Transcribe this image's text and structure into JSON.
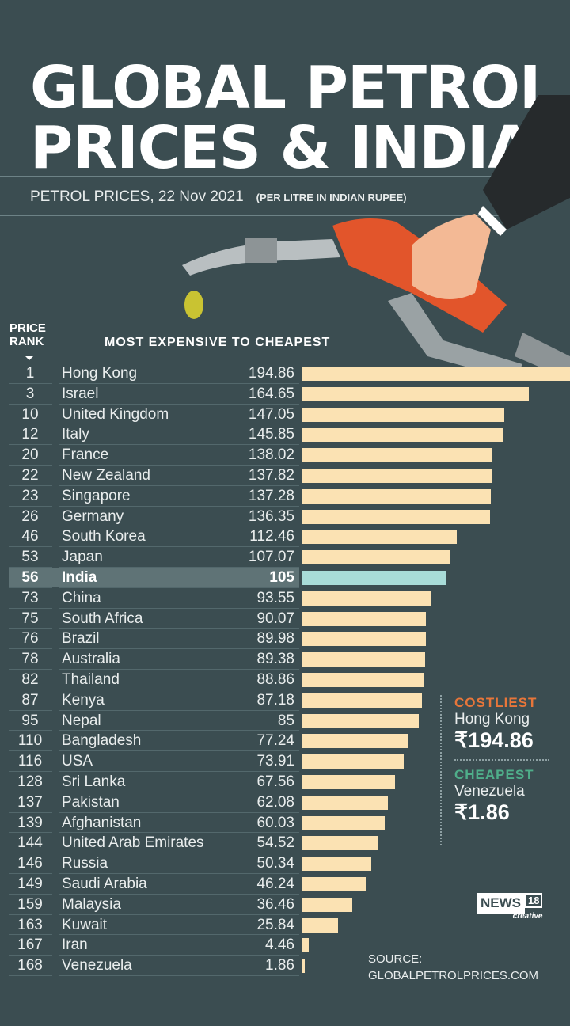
{
  "header": {
    "title_line1": "GLOBAL PETROL",
    "title_line2": "PRICES & INDIA",
    "subtitle": "PETROL PRICES, 22 Nov 2021",
    "unit_note": "(PER LITRE IN INDIAN RUPEE)"
  },
  "chart_data": {
    "type": "bar",
    "orientation": "horizontal",
    "title": "MOST EXPENSIVE TO CHEAPEST",
    "rank_header": "PRICE RANK",
    "highlight": "India",
    "colors": {
      "bar": "#fbe2b3",
      "highlight_bar": "#a8dcd8",
      "background": "#3b4d51"
    },
    "rows": [
      {
        "rank": "1",
        "country": "Hong Kong",
        "value": "194.86"
      },
      {
        "rank": "3",
        "country": "Israel",
        "value": "164.65"
      },
      {
        "rank": "10",
        "country": "United Kingdom",
        "value": "147.05"
      },
      {
        "rank": "12",
        "country": "Italy",
        "value": "145.85"
      },
      {
        "rank": "20",
        "country": "France",
        "value": "138.02"
      },
      {
        "rank": "22",
        "country": "New Zealand",
        "value": "137.82"
      },
      {
        "rank": "23",
        "country": "Singapore",
        "value": "137.28"
      },
      {
        "rank": "26",
        "country": "Germany",
        "value": "136.35"
      },
      {
        "rank": "46",
        "country": "South Korea",
        "value": "112.46"
      },
      {
        "rank": "53",
        "country": "Japan",
        "value": "107.07"
      },
      {
        "rank": "56",
        "country": "India",
        "value": "105"
      },
      {
        "rank": "73",
        "country": "China",
        "value": "93.55"
      },
      {
        "rank": "75",
        "country": "South Africa",
        "value": "90.07"
      },
      {
        "rank": "76",
        "country": "Brazil",
        "value": "89.98"
      },
      {
        "rank": "78",
        "country": "Australia",
        "value": "89.38"
      },
      {
        "rank": "82",
        "country": "Thailand",
        "value": "88.86"
      },
      {
        "rank": "87",
        "country": "Kenya",
        "value": "87.18"
      },
      {
        "rank": "95",
        "country": "Nepal",
        "value": "85"
      },
      {
        "rank": "110",
        "country": "Bangladesh",
        "value": "77.24"
      },
      {
        "rank": "116",
        "country": "USA",
        "value": "73.91"
      },
      {
        "rank": "128",
        "country": "Sri Lanka",
        "value": "67.56"
      },
      {
        "rank": "137",
        "country": "Pakistan",
        "value": "62.08"
      },
      {
        "rank": "139",
        "country": "Afghanistan",
        "value": "60.03"
      },
      {
        "rank": "144",
        "country": "United Arab Emirates",
        "value": "54.52"
      },
      {
        "rank": "146",
        "country": "Russia",
        "value": "50.34"
      },
      {
        "rank": "149",
        "country": "Saudi Arabia",
        "value": "46.24"
      },
      {
        "rank": "159",
        "country": "Malaysia",
        "value": "36.46"
      },
      {
        "rank": "163",
        "country": "Kuwait",
        "value": "25.84"
      },
      {
        "rank": "167",
        "country": "Iran",
        "value": "4.46"
      },
      {
        "rank": "168",
        "country": "Venezuela",
        "value": "1.86"
      }
    ]
  },
  "summary": {
    "costliest_label": "COSTLIEST",
    "costliest_country": "Hong Kong",
    "costliest_amount": "₹194.86",
    "costliest_color": "#e8763a",
    "cheapest_label": "CHEAPEST",
    "cheapest_country": "Venezuela",
    "cheapest_amount": "₹1.86",
    "cheapest_color": "#4fae8a"
  },
  "logo": {
    "name": "NEWS",
    "num": "18",
    "tag": "creative"
  },
  "source": {
    "line1": "SOURCE:",
    "line2": "GLOBALPETROLPRICES.COM"
  }
}
